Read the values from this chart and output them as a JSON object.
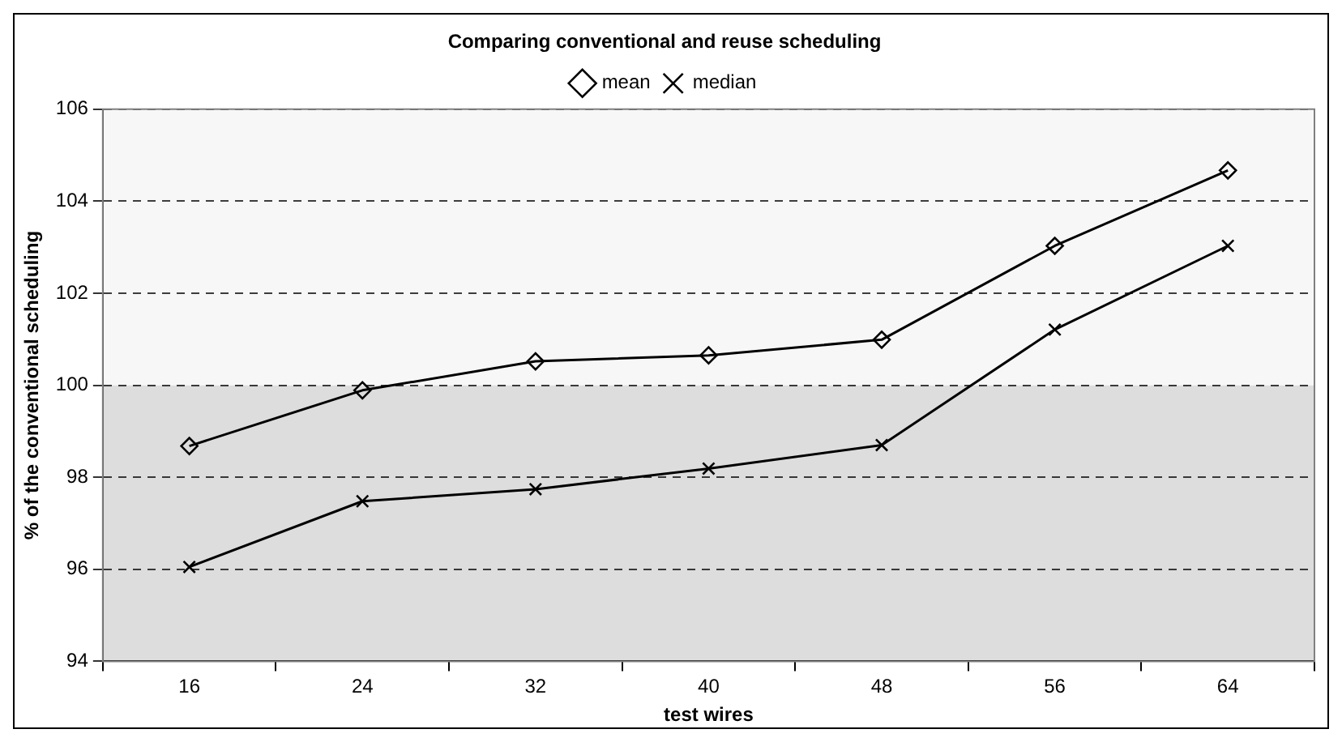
{
  "chart_data": {
    "type": "line",
    "title": "Comparing conventional and reuse scheduling",
    "xlabel": "test wires",
    "ylabel": "% of the conventional scheduling",
    "categories": [
      "16",
      "24",
      "32",
      "40",
      "48",
      "56",
      "64"
    ],
    "series": [
      {
        "name": "mean",
        "color": "#000000",
        "marker": "diamond",
        "values": [
          98.68,
          99.89,
          100.52,
          100.65,
          100.99,
          103.03,
          104.67
        ]
      },
      {
        "name": "median",
        "color": "#000000",
        "marker": "cross",
        "values": [
          96.05,
          97.48,
          97.74,
          98.19,
          98.7,
          101.21,
          103.03
        ]
      }
    ],
    "ylim": [
      94,
      106
    ],
    "yticks": [
      94,
      96,
      98,
      100,
      102,
      104,
      106
    ],
    "grid": "y",
    "legend": "top",
    "bands": [
      {
        "axis": "y",
        "from": 94,
        "to": 100,
        "color": "#dddddd"
      },
      {
        "axis": "y",
        "from": 100,
        "to": 106,
        "color": "#f7f7f7"
      }
    ]
  }
}
